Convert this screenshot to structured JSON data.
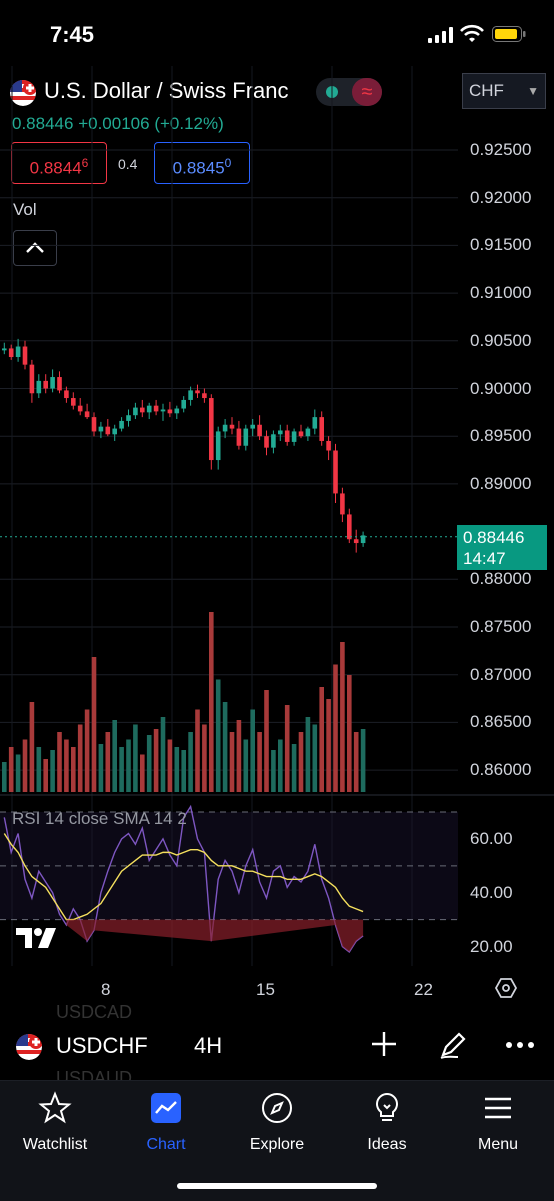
{
  "status_bar": {
    "time": "7:45"
  },
  "header": {
    "title": "U.S. Dollar / Swiss Franc",
    "currency": "CHF",
    "last": "0.88446",
    "change": "+0.00106",
    "change_pct": "(+0.12%)",
    "bid_main": "0.8844",
    "bid_small": "6",
    "spread": "0.4",
    "ask_main": "0.8845",
    "ask_small": "0",
    "volume_label": "Vol"
  },
  "price_axis": [
    "0.92500",
    "0.92000",
    "0.91500",
    "0.91000",
    "0.90500",
    "0.90000",
    "0.89500",
    "0.89000",
    "0.88000",
    "0.87500",
    "0.87000",
    "0.86500",
    "0.86000"
  ],
  "last_price_tag": {
    "price": "0.88446",
    "countdown": "14:47"
  },
  "rsi": {
    "label": "RSI 14 close SMA 14 2",
    "axis": [
      "60.00",
      "40.00",
      "20.00"
    ]
  },
  "time_axis": [
    "8",
    "15",
    "22"
  ],
  "symbol_bar": {
    "symbol": "USDCHF",
    "interval": "4H",
    "ghost_above": "USDCAD",
    "ghost_below": "USDAUD"
  },
  "nav": [
    {
      "label": "Watchlist",
      "icon": "star-icon"
    },
    {
      "label": "Chart",
      "icon": "chart-icon"
    },
    {
      "label": "Explore",
      "icon": "compass-icon"
    },
    {
      "label": "Ideas",
      "icon": "lightbulb-icon"
    },
    {
      "label": "Menu",
      "icon": "menu-icon"
    }
  ],
  "colors": {
    "up": "#22ab94",
    "down": "#f23645",
    "accent": "#2962ff",
    "rsi": "#7e57c2",
    "rsi_ma": "#f5e05e"
  },
  "chart_data": {
    "type": "candlestick",
    "symbol": "USDCHF",
    "interval": "4H",
    "ohlc": [
      [
        0.904,
        0.9048,
        0.9036,
        0.9042
      ],
      [
        0.9042,
        0.9046,
        0.903,
        0.9033
      ],
      [
        0.9033,
        0.9052,
        0.9028,
        0.9044
      ],
      [
        0.9044,
        0.905,
        0.902,
        0.9025
      ],
      [
        0.9025,
        0.903,
        0.8985,
        0.8995
      ],
      [
        0.8995,
        0.9015,
        0.899,
        0.9008
      ],
      [
        0.9008,
        0.9015,
        0.8995,
        0.9
      ],
      [
        0.9,
        0.902,
        0.8996,
        0.9012
      ],
      [
        0.9012,
        0.9018,
        0.8995,
        0.8998
      ],
      [
        0.8998,
        0.9002,
        0.8985,
        0.899
      ],
      [
        0.899,
        0.8996,
        0.8978,
        0.8982
      ],
      [
        0.8982,
        0.899,
        0.8972,
        0.8976
      ],
      [
        0.8976,
        0.8984,
        0.8968,
        0.897
      ],
      [
        0.897,
        0.8975,
        0.895,
        0.8955
      ],
      [
        0.8955,
        0.8965,
        0.8948,
        0.896
      ],
      [
        0.896,
        0.8968,
        0.895,
        0.8952
      ],
      [
        0.8952,
        0.8962,
        0.8945,
        0.8958
      ],
      [
        0.8958,
        0.897,
        0.8955,
        0.8966
      ],
      [
        0.8966,
        0.8978,
        0.896,
        0.8972
      ],
      [
        0.8972,
        0.8985,
        0.8968,
        0.898
      ],
      [
        0.898,
        0.8988,
        0.897,
        0.8975
      ],
      [
        0.8975,
        0.8985,
        0.8968,
        0.8982
      ],
      [
        0.8982,
        0.8988,
        0.8972,
        0.8976
      ],
      [
        0.8976,
        0.8984,
        0.8966,
        0.8978
      ],
      [
        0.8978,
        0.8986,
        0.897,
        0.8974
      ],
      [
        0.8974,
        0.8982,
        0.8968,
        0.8979
      ],
      [
        0.8979,
        0.8992,
        0.8975,
        0.8988
      ],
      [
        0.8988,
        0.9002,
        0.8982,
        0.8998
      ],
      [
        0.8998,
        0.9004,
        0.899,
        0.8995
      ],
      [
        0.8995,
        0.9,
        0.8985,
        0.899
      ],
      [
        0.899,
        0.8994,
        0.8915,
        0.8925
      ],
      [
        0.8925,
        0.896,
        0.8915,
        0.8955
      ],
      [
        0.8955,
        0.8968,
        0.8948,
        0.8962
      ],
      [
        0.8962,
        0.897,
        0.8952,
        0.8958
      ],
      [
        0.8958,
        0.8966,
        0.8936,
        0.894
      ],
      [
        0.894,
        0.8962,
        0.8935,
        0.8958
      ],
      [
        0.8958,
        0.8968,
        0.895,
        0.8962
      ],
      [
        0.8962,
        0.8972,
        0.8946,
        0.895
      ],
      [
        0.895,
        0.8956,
        0.893,
        0.8938
      ],
      [
        0.8938,
        0.8956,
        0.8932,
        0.8952
      ],
      [
        0.8952,
        0.8962,
        0.8945,
        0.8956
      ],
      [
        0.8956,
        0.8962,
        0.894,
        0.8944
      ],
      [
        0.8944,
        0.8958,
        0.894,
        0.8955
      ],
      [
        0.8955,
        0.8962,
        0.8948,
        0.895
      ],
      [
        0.895,
        0.896,
        0.8945,
        0.8958
      ],
      [
        0.8958,
        0.8978,
        0.8952,
        0.897
      ],
      [
        0.897,
        0.8976,
        0.894,
        0.8945
      ],
      [
        0.8945,
        0.895,
        0.8925,
        0.8935
      ],
      [
        0.8935,
        0.8942,
        0.888,
        0.889
      ],
      [
        0.889,
        0.8896,
        0.886,
        0.8868
      ],
      [
        0.8868,
        0.8874,
        0.8838,
        0.8842
      ],
      [
        0.8842,
        0.8852,
        0.8828,
        0.8838
      ],
      [
        0.8838,
        0.885,
        0.8834,
        0.8846
      ]
    ],
    "volume": [
      20,
      30,
      25,
      35,
      60,
      30,
      22,
      28,
      40,
      35,
      30,
      45,
      55,
      90,
      32,
      40,
      48,
      30,
      35,
      45,
      25,
      38,
      42,
      50,
      35,
      30,
      28,
      40,
      55,
      45,
      120,
      75,
      60,
      40,
      48,
      35,
      55,
      40,
      68,
      28,
      35,
      58,
      32,
      40,
      50,
      45,
      70,
      62,
      85,
      100,
      78,
      40,
      42
    ],
    "rsi": [
      68,
      55,
      62,
      45,
      38,
      48,
      44,
      40,
      32,
      28,
      34,
      30,
      22,
      26,
      40,
      48,
      55,
      60,
      62,
      58,
      64,
      52,
      56,
      60,
      54,
      50,
      68,
      72,
      60,
      55,
      22,
      45,
      52,
      48,
      40,
      50,
      56,
      44,
      38,
      48,
      50,
      42,
      46,
      44,
      48,
      58,
      45,
      38,
      28,
      20,
      18,
      22,
      24
    ],
    "rsi_ma": [
      62,
      58,
      55,
      50,
      46,
      44,
      42,
      38,
      34,
      30,
      30,
      31,
      32,
      34,
      36,
      40,
      44,
      48,
      50,
      52,
      54,
      54,
      54,
      55,
      55,
      54,
      55,
      56,
      56,
      55,
      52,
      50,
      50,
      50,
      49,
      48,
      48,
      47,
      46,
      46,
      46,
      45,
      45,
      45,
      46,
      47,
      46,
      44,
      42,
      38,
      35,
      34,
      33
    ],
    "yaxis": {
      "range": [
        0.859,
        0.927
      ]
    },
    "rsi_axis": {
      "range": [
        15,
        70
      ],
      "bands": [
        30,
        50,
        70
      ]
    },
    "last_price": "0.88446"
  }
}
